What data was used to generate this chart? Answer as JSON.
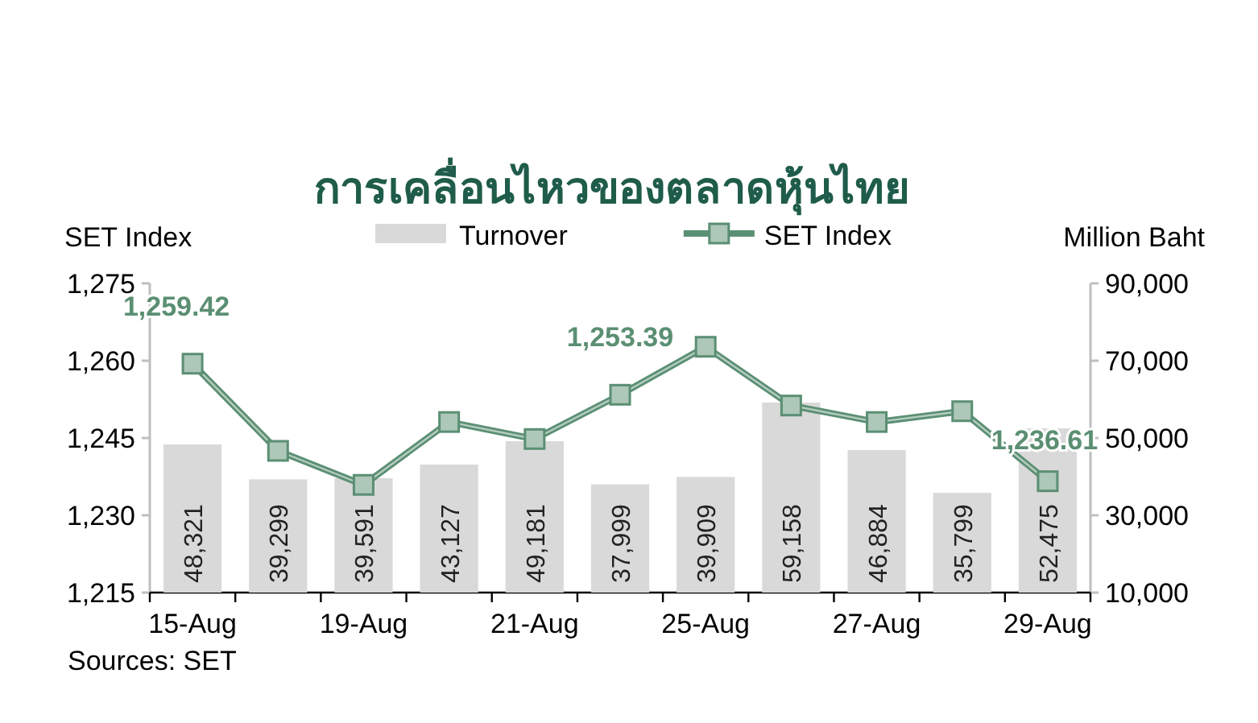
{
  "chart_data": {
    "type": "bar",
    "title": "การเคลื่อนไหวของตลาดหุ้นไทย",
    "ylabel": "SET Index",
    "y2label": "Million Baht",
    "categories": [
      "15-Aug",
      null,
      "19-Aug",
      null,
      "21-Aug",
      null,
      "25-Aug",
      null,
      "27-Aug",
      null,
      "29-Aug"
    ],
    "series": [
      {
        "name": "Turnover",
        "axis": "y2",
        "color": "#d9d9d9",
        "values": [
          48321,
          39299,
          39591,
          43127,
          49181,
          37999,
          39909,
          59158,
          46884,
          35799,
          52475
        ],
        "value_labels": [
          "48,321",
          "39,299",
          "39,591",
          "43,127",
          "49,181",
          "37,999",
          "39,909",
          "59,158",
          "46,884",
          "35,799",
          "52,475"
        ]
      },
      {
        "name": "SET Index",
        "type": "line",
        "color": "#5b8f73",
        "marker": "square",
        "values": [
          1259.42,
          1242.5,
          1235.9,
          1248.1,
          1244.8,
          1253.39,
          1262.7,
          1251.3,
          1248.1,
          1250.2,
          1236.61
        ],
        "value_labels": [
          "1,259.42",
          null,
          null,
          null,
          null,
          "1,253.39",
          null,
          null,
          null,
          null,
          "1,236.61"
        ]
      }
    ],
    "ylim": [
      1215,
      1275
    ],
    "yticks": [
      {
        "value": 1215,
        "label": "1,215"
      },
      {
        "value": 1230,
        "label": "1,230"
      },
      {
        "value": 1245,
        "label": "1,245"
      },
      {
        "value": 1260,
        "label": "1,260"
      },
      {
        "value": 1275,
        "label": "1,275"
      }
    ],
    "y2lim": [
      10000,
      90000
    ],
    "y2ticks": [
      {
        "value": 10000,
        "label": "10,000"
      },
      {
        "value": 30000,
        "label": "30,000"
      },
      {
        "value": 50000,
        "label": "50,000"
      },
      {
        "value": 70000,
        "label": "70,000"
      },
      {
        "value": 90000,
        "label": "90,000"
      }
    ],
    "legend": "top",
    "grid": false,
    "annotations": [
      "Sources: SET"
    ]
  }
}
